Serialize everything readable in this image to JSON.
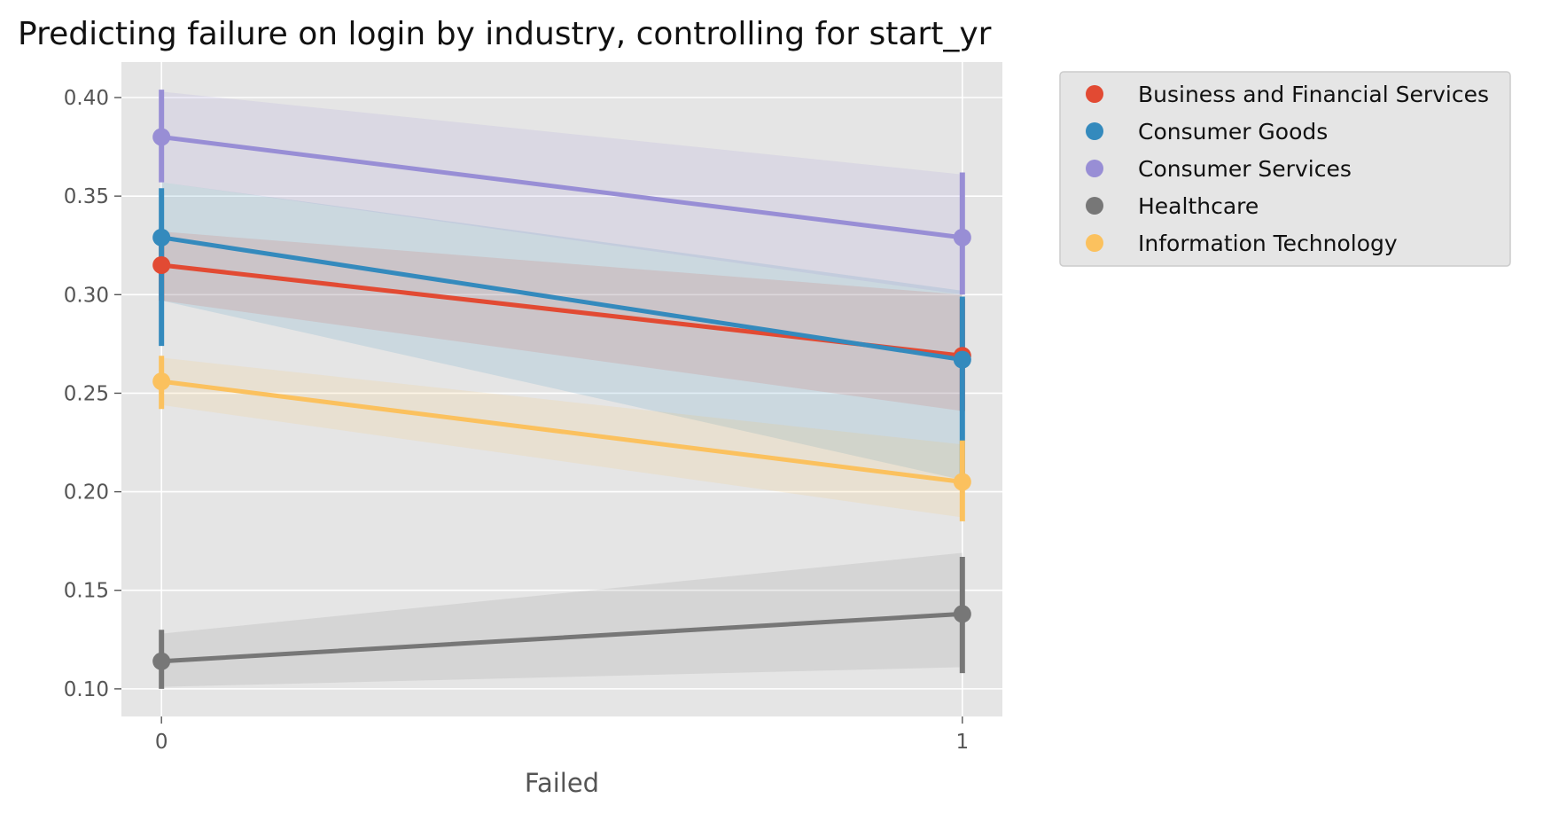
{
  "chart_data": {
    "type": "line",
    "title": "Predicting failure on login by industry, controlling for start_yr",
    "xlabel": "Failed",
    "ylabel": "",
    "x_ticks": [
      "0",
      "1"
    ],
    "xlim": [
      -0.05,
      1.05
    ],
    "ylim": [
      0.086,
      0.418
    ],
    "y_ticks": [
      0.1,
      0.15,
      0.2,
      0.25,
      0.3,
      0.35,
      0.4
    ],
    "y_tick_labels": [
      "0.10",
      "0.15",
      "0.20",
      "0.25",
      "0.30",
      "0.35",
      "0.40"
    ],
    "grid": true,
    "legend_position": "outside-right",
    "background_color": "#e5e5e5",
    "series": [
      {
        "name": "Business and Financial Services",
        "color": "#e24a33",
        "x": [
          0,
          1
        ],
        "values": [
          0.315,
          0.269
        ],
        "ci_low": [
          0.297,
          0.241
        ],
        "ci_high": [
          0.332,
          0.298
        ],
        "band_low": [
          0.297,
          0.241
        ],
        "band_high": [
          0.332,
          0.3
        ]
      },
      {
        "name": "Consumer Goods",
        "color": "#348abd",
        "x": [
          0,
          1
        ],
        "values": [
          0.329,
          0.267
        ],
        "ci_low": [
          0.274,
          0.208
        ],
        "ci_high": [
          0.354,
          0.299
        ],
        "band_low": [
          0.297,
          0.206
        ],
        "band_high": [
          0.357,
          0.302
        ]
      },
      {
        "name": "Consumer Services",
        "color": "#988ed5",
        "x": [
          0,
          1
        ],
        "values": [
          0.38,
          0.329
        ],
        "ci_low": [
          0.357,
          0.3
        ],
        "ci_high": [
          0.404,
          0.362
        ],
        "band_low": [
          0.357,
          0.3
        ],
        "band_high": [
          0.403,
          0.361
        ]
      },
      {
        "name": "Healthcare",
        "color": "#777777",
        "x": [
          0,
          1
        ],
        "values": [
          0.114,
          0.138
        ],
        "ci_low": [
          0.1,
          0.108
        ],
        "ci_high": [
          0.13,
          0.167
        ],
        "band_low": [
          0.101,
          0.111
        ],
        "band_high": [
          0.128,
          0.169
        ]
      },
      {
        "name": "Information Technology",
        "color": "#fbc15e",
        "x": [
          0,
          1
        ],
        "values": [
          0.256,
          0.205
        ],
        "ci_low": [
          0.242,
          0.185
        ],
        "ci_high": [
          0.269,
          0.226
        ],
        "band_low": [
          0.244,
          0.187
        ],
        "band_high": [
          0.268,
          0.224
        ]
      }
    ]
  }
}
